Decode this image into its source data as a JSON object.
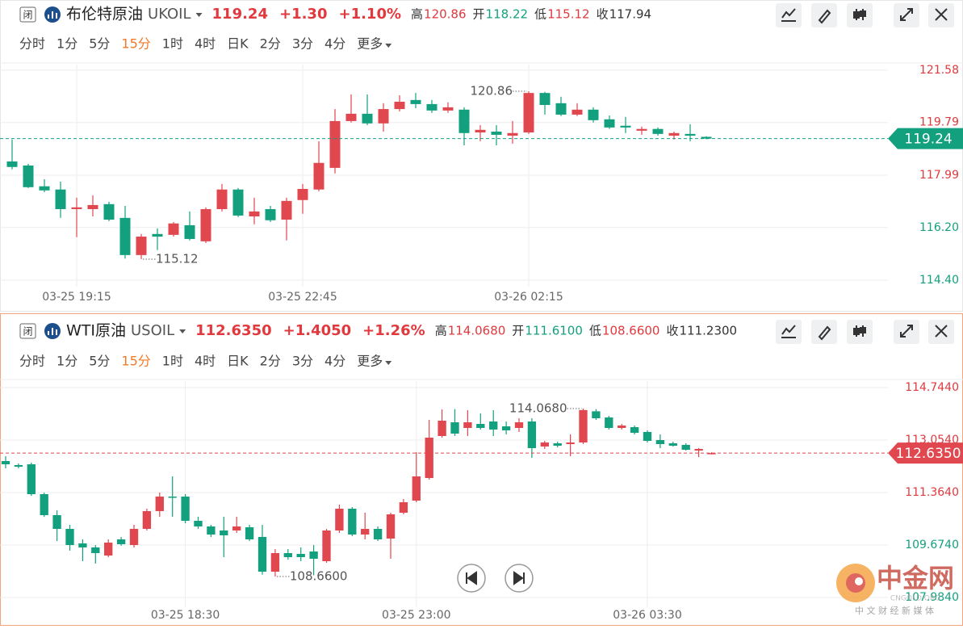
{
  "panels": [
    {
      "icon": "闭",
      "title": "布伦特原油",
      "symbol": "UKOIL",
      "price": "119.24",
      "change": "+1.30",
      "change_pct": "+1.10%",
      "stats": [
        {
          "name": "高",
          "value": "120.86"
        },
        {
          "name": "开",
          "value": "118.22"
        },
        {
          "name": "低",
          "value": "115.12"
        },
        {
          "name": "收",
          "value": "117.94"
        }
      ],
      "tabs": [
        "分时",
        "1分",
        "5分",
        "15分",
        "1时",
        "4时",
        "日K",
        "2分",
        "3分",
        "4分",
        "更多"
      ],
      "active_tab": 3
    },
    {
      "icon": "闭",
      "title": "WTI原油",
      "symbol": "USOIL",
      "price": "112.6350",
      "change": "+1.4050",
      "change_pct": "+1.26%",
      "stats": [
        {
          "name": "高",
          "value": "114.0680"
        },
        {
          "name": "开",
          "value": "111.6100"
        },
        {
          "name": "低",
          "value": "108.6600"
        },
        {
          "name": "收",
          "value": "111.2300"
        }
      ],
      "tabs": [
        "分时",
        "1分",
        "5分",
        "15分",
        "1时",
        "4时",
        "日K",
        "2分",
        "3分",
        "4分",
        "更多"
      ],
      "active_tab": 3
    }
  ],
  "chart_data": [
    {
      "type": "candlestick",
      "up_color": "#e0474f",
      "down_color": "#13a07f",
      "grid": true,
      "categories": [
        null,
        null,
        null,
        null,
        "03-25 19:15",
        null,
        null,
        null,
        null,
        null,
        null,
        null,
        null,
        null,
        null,
        null,
        null,
        null,
        "03-25 22:45",
        null,
        null,
        null,
        null,
        null,
        null,
        null,
        null,
        null,
        null,
        null,
        null,
        null,
        "03-26 02:15",
        null,
        null,
        null,
        null,
        null,
        null,
        null,
        null,
        null,
        null,
        null
      ],
      "open": [
        118.46,
        118.32,
        117.61,
        117.5,
        116.83,
        116.83,
        117.0,
        116.53,
        115.26,
        115.98,
        115.95,
        116.28,
        115.73,
        116.83,
        117.5,
        116.58,
        116.83,
        116.47,
        117.14,
        117.5,
        118.24,
        119.84,
        120.09,
        119.76,
        120.25,
        120.56,
        120.42,
        120.2,
        120.23,
        119.45,
        119.48,
        119.34,
        119.45,
        120.8,
        120.45,
        120.06,
        120.23,
        119.9,
        119.68,
        119.51,
        119.57,
        119.34,
        119.4,
        119.3
      ],
      "high": [
        119.21,
        118.38,
        117.85,
        117.77,
        117.22,
        117.3,
        117.08,
        116.94,
        115.98,
        116.17,
        116.39,
        116.75,
        116.89,
        117.69,
        117.55,
        117.22,
        116.94,
        117.22,
        117.69,
        119.15,
        120.25,
        120.75,
        120.75,
        120.45,
        120.72,
        120.8,
        120.56,
        120.48,
        120.31,
        119.7,
        119.7,
        119.84,
        120.86,
        120.84,
        120.67,
        120.45,
        120.31,
        120.03,
        119.98,
        119.65,
        119.62,
        119.48,
        119.73,
        119.32
      ],
      "low": [
        118.19,
        117.55,
        117.41,
        116.53,
        115.87,
        116.58,
        116.42,
        115.14,
        115.12,
        115.43,
        115.89,
        115.76,
        115.67,
        116.75,
        116.56,
        116.31,
        116.39,
        115.76,
        116.67,
        117.44,
        118.05,
        119.79,
        119.7,
        119.48,
        120.17,
        120.28,
        120.12,
        120.12,
        119.01,
        119.15,
        119.01,
        119.07,
        119.4,
        120.06,
        120.01,
        120.01,
        119.79,
        119.57,
        119.43,
        119.37,
        119.34,
        119.21,
        119.15,
        119.22
      ],
      "close": [
        118.27,
        117.58,
        117.47,
        116.83,
        116.89,
        116.97,
        116.47,
        115.26,
        115.89,
        115.89,
        116.34,
        115.81,
        116.83,
        117.5,
        116.61,
        116.75,
        116.45,
        117.11,
        117.52,
        118.41,
        119.84,
        120.09,
        119.76,
        120.25,
        120.5,
        120.42,
        120.2,
        120.31,
        119.43,
        119.54,
        119.37,
        119.43,
        120.8,
        120.39,
        120.06,
        120.23,
        119.87,
        119.62,
        119.62,
        119.57,
        119.4,
        119.43,
        119.34,
        119.24
      ],
      "ylim": [
        114.18,
        121.77
      ],
      "yticks": [
        121.58,
        119.79,
        117.99,
        {
          "value": 116.2,
          "label": "116.20"
        },
        {
          "value": 114.4,
          "label": "114.40"
        }
      ],
      "high_label": "120.86",
      "low_label": "115.12"
    },
    {
      "type": "candlestick",
      "up_color": "#e0474f",
      "down_color": "#13a07f",
      "grid": true,
      "categories": [
        null,
        null,
        null,
        null,
        null,
        null,
        null,
        null,
        null,
        null,
        null,
        null,
        null,
        null,
        "03-25 18:30",
        null,
        null,
        null,
        null,
        null,
        null,
        null,
        null,
        null,
        null,
        null,
        null,
        null,
        null,
        null,
        null,
        null,
        "03-25 23:00",
        null,
        null,
        null,
        null,
        null,
        null,
        null,
        null,
        null,
        null,
        null,
        null,
        null,
        null,
        null,
        null,
        null,
        "03-26 03:30",
        null,
        null,
        null,
        null,
        null
      ],
      "open": [
        112.378,
        112.248,
        112.274,
        111.312,
        110.636,
        110.194,
        109.726,
        109.596,
        109.336,
        109.856,
        109.674,
        110.194,
        110.766,
        111.234,
        111.234,
        110.454,
        110.272,
        110.142,
        110.142,
        110.246,
        109.934,
        108.816,
        109.414,
        109.388,
        109.466,
        109.154,
        110.142,
        110.844,
        110.012,
        110.194,
        109.882,
        110.714,
        111.104,
        111.832,
        113.184,
        113.626,
        113.444,
        113.574,
        113.652,
        113.496,
        113.444,
        113.652,
        112.846,
        112.95,
        112.924,
        112.976,
        113.98,
        113.782,
        113.444,
        113.47,
        113.314,
        113.054,
        112.95,
        112.898,
        112.716,
        112.6
      ],
      "high": [
        112.534,
        112.3,
        112.326,
        111.36,
        110.79,
        110.324,
        109.856,
        109.674,
        109.856,
        109.934,
        110.324,
        110.844,
        111.364,
        111.884,
        111.312,
        110.584,
        110.324,
        110.584,
        110.584,
        110.324,
        110.324,
        109.544,
        109.544,
        109.596,
        109.674,
        110.194,
        110.974,
        110.896,
        110.714,
        110.272,
        110.714,
        111.156,
        112.664,
        113.704,
        114.04,
        114.05,
        114.016,
        113.912,
        114.016,
        113.652,
        113.756,
        113.756,
        113.028,
        113.0,
        113.236,
        114.068,
        114.05,
        113.834,
        113.574,
        113.522,
        113.366,
        113.236,
        113.0,
        112.95,
        112.794,
        112.66
      ],
      "low": [
        112.144,
        112.144,
        111.26,
        110.58,
        109.804,
        109.492,
        109.154,
        109.076,
        109.284,
        109.65,
        109.596,
        110.142,
        110.584,
        110.584,
        110.376,
        110.194,
        109.934,
        109.284,
        110.064,
        109.804,
        108.72,
        108.66,
        109.206,
        109.154,
        108.7,
        109.102,
        110.064,
        109.96,
        109.856,
        109.804,
        109.232,
        110.662,
        111.052,
        111.78,
        113.132,
        113.184,
        113.184,
        113.392,
        113.184,
        113.236,
        113.314,
        112.482,
        112.768,
        112.82,
        112.534,
        112.924,
        113.704,
        113.392,
        113.392,
        113.236,
        112.976,
        112.794,
        112.846,
        112.716,
        112.508,
        112.59
      ],
      "close": [
        112.274,
        112.196,
        111.312,
        110.636,
        110.194,
        109.674,
        109.596,
        109.414,
        109.752,
        109.7,
        110.194,
        110.766,
        111.234,
        111.208,
        110.454,
        110.272,
        110.012,
        109.986,
        110.272,
        109.856,
        108.816,
        109.414,
        109.284,
        109.284,
        109.232,
        110.142,
        110.844,
        110.012,
        110.194,
        109.856,
        110.662,
        111.052,
        111.884,
        113.132,
        113.678,
        113.262,
        113.626,
        113.444,
        113.392,
        113.366,
        113.626,
        112.794,
        112.976,
        112.872,
        112.976,
        114.02,
        113.756,
        113.444,
        113.522,
        113.288,
        113.028,
        112.924,
        112.872,
        112.742,
        112.768,
        112.635
      ],
      "ylim": [
        107.672,
        114.952
      ],
      "yticks": [
        {
          "value": 114.744,
          "label": "114.7440"
        },
        {
          "value": 113.054,
          "label": "113.0540"
        },
        {
          "value": 111.364,
          "label": "111.3640"
        },
        {
          "value": 109.674,
          "label": "109.6740"
        },
        {
          "value": 107.984,
          "label": "107.9840"
        }
      ],
      "high_label": "114.0680",
      "low_label": "108.6600"
    }
  ],
  "watermark": {
    "name": "中金网",
    "domain": "CNGOLD.ORG",
    "slogan": "中 文 财 经 新 媒 体"
  }
}
